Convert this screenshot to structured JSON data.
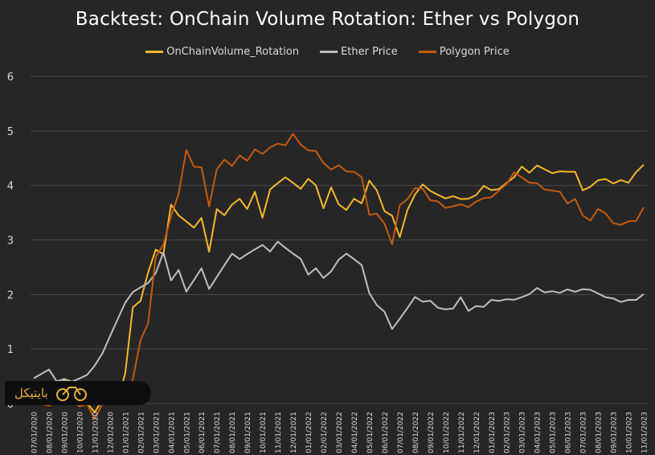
{
  "chart_data": {
    "type": "line",
    "title": "Backtest: OnChain Volume Rotation:  Ether vs Polygon",
    "xlabel": "",
    "ylabel": "",
    "ylim": [
      0,
      6
    ],
    "yticks": [
      "0",
      "1",
      "2",
      "3",
      "4",
      "5",
      "6"
    ],
    "grid": true,
    "legend_position": "top",
    "x_tick_labels": [
      "07/01/2020",
      "08/01/2020",
      "09/01/2020",
      "10/01/2020",
      "11/01/2020",
      "12/01/2020",
      "01/01/2021",
      "02/01/2021",
      "03/01/2021",
      "04/01/2021",
      "05/01/2021",
      "06/01/2021",
      "07/01/2021",
      "08/01/2021",
      "09/01/2021",
      "10/01/2021",
      "11/01/2021",
      "12/01/2021",
      "01/01/2022",
      "02/01/2022",
      "03/01/2022",
      "04/01/2022",
      "05/01/2022",
      "06/01/2022",
      "07/01/2022",
      "08/01/2022",
      "09/01/2022",
      "10/01/2022",
      "11/01/2022",
      "12/01/2022",
      "01/01/2023",
      "02/01/2023",
      "03/01/2023",
      "04/01/2023",
      "05/01/2023",
      "06/01/2023",
      "07/01/2023",
      "08/01/2023",
      "09/01/2023",
      "10/01/2023",
      "11/01/2023"
    ],
    "x_index": [
      0,
      0.5,
      1,
      1.5,
      2,
      2.5,
      3,
      3.5,
      4,
      4.5,
      5,
      5.5,
      6,
      6.5,
      7,
      7.5,
      8,
      8.5,
      9,
      9.5,
      10,
      10.5,
      11,
      11.5,
      12,
      12.5,
      13,
      13.5,
      14,
      14.5,
      15,
      15.5,
      16,
      16.5,
      17,
      17.5,
      18,
      18.5,
      19,
      19.5,
      20,
      20.5,
      21,
      21.5,
      22,
      22.5,
      23,
      23.5,
      24,
      24.5,
      25,
      25.5,
      26,
      26.5,
      27,
      27.5,
      28,
      28.5,
      29,
      29.5,
      30,
      30.5,
      31,
      31.5,
      32,
      32.5,
      33,
      33.5,
      34,
      34.5,
      35,
      35.5,
      36,
      36.5,
      37,
      37.5,
      38,
      38.5,
      39,
      39.5,
      40
    ],
    "series": [
      {
        "name": "OnChainVolume_Rotation",
        "color": "#f5b82e",
        "values": [
          0.25,
          0.2,
          0.3,
          0.15,
          0.4,
          0.1,
          0.1,
          0.0,
          -0.15,
          0.1,
          0.2,
          0.1,
          0.6,
          1.8,
          1.9,
          2.4,
          2.8,
          2.7,
          3.6,
          3.4,
          3.3,
          3.2,
          3.4,
          2.8,
          3.6,
          3.5,
          3.7,
          3.8,
          3.6,
          3.9,
          3.4,
          3.9,
          4.0,
          4.1,
          4.0,
          3.9,
          4.1,
          4.0,
          3.6,
          4.0,
          3.7,
          3.6,
          3.8,
          3.7,
          4.1,
          3.9,
          3.5,
          3.4,
          3.0,
          3.5,
          3.8,
          4.0,
          3.9,
          3.85,
          3.8,
          3.85,
          3.8,
          3.8,
          3.85,
          4.0,
          3.9,
          3.9,
          4.0,
          4.1,
          4.3,
          4.2,
          4.35,
          4.3,
          4.25,
          4.3,
          4.3,
          4.3,
          3.95,
          4.0,
          4.1,
          4.1,
          4.0,
          4.05,
          4.0,
          4.2,
          4.35
        ]
      },
      {
        "name": "Ether Price",
        "color": "#bfbfbf",
        "values": [
          0.45,
          0.55,
          0.65,
          0.45,
          0.5,
          0.45,
          0.5,
          0.55,
          0.7,
          0.9,
          1.2,
          1.5,
          1.8,
          2.0,
          2.1,
          2.2,
          2.4,
          2.8,
          2.3,
          2.5,
          2.1,
          2.3,
          2.5,
          2.1,
          2.3,
          2.5,
          2.7,
          2.6,
          2.7,
          2.8,
          2.9,
          2.8,
          3.0,
          2.9,
          2.8,
          2.7,
          2.4,
          2.5,
          2.3,
          2.4,
          2.6,
          2.7,
          2.6,
          2.5,
          2.0,
          1.8,
          1.7,
          1.4,
          1.6,
          1.8,
          2.0,
          1.9,
          1.9,
          1.75,
          1.7,
          1.7,
          1.9,
          1.65,
          1.75,
          1.75,
          1.9,
          1.9,
          1.95,
          1.95,
          2.0,
          2.05,
          2.15,
          2.05,
          2.05,
          2.0,
          2.05,
          2.0,
          2.05,
          2.05,
          2.0,
          1.95,
          1.95,
          1.9,
          1.95,
          1.95,
          2.05
        ]
      },
      {
        "name": "Polygon Price",
        "color": "#c55a11",
        "values": [
          0.05,
          0.0,
          -0.05,
          0.0,
          0.05,
          0.0,
          -0.1,
          -0.05,
          -0.3,
          0.0,
          0.1,
          0.05,
          0.1,
          0.5,
          1.2,
          1.5,
          2.7,
          2.9,
          3.4,
          3.8,
          4.6,
          4.3,
          4.3,
          3.6,
          4.3,
          4.5,
          4.4,
          4.6,
          4.5,
          4.7,
          4.6,
          4.7,
          4.75,
          4.7,
          4.9,
          4.7,
          4.6,
          4.6,
          4.4,
          4.3,
          4.4,
          4.3,
          4.3,
          4.2,
          3.5,
          3.5,
          3.3,
          2.9,
          3.6,
          3.7,
          3.9,
          3.9,
          3.7,
          3.7,
          3.6,
          3.65,
          3.7,
          3.65,
          3.75,
          3.8,
          3.8,
          3.9,
          4.0,
          4.2,
          4.1,
          4.0,
          4.0,
          3.9,
          3.9,
          3.9,
          3.7,
          3.8,
          3.5,
          3.4,
          3.6,
          3.5,
          3.3,
          3.25,
          3.3,
          3.3,
          3.55
        ]
      }
    ],
    "watermark_text": "بایتیکل"
  }
}
